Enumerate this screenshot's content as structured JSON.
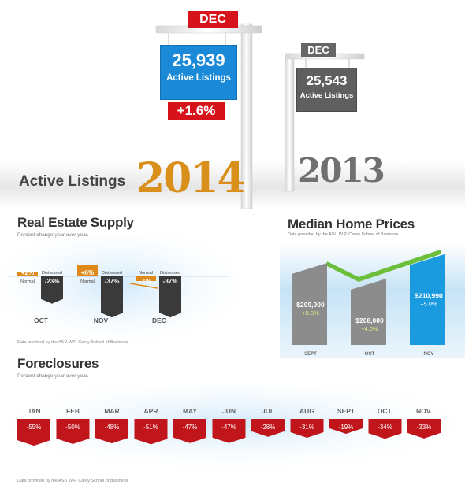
{
  "listings": {
    "section_title": "Active Listings",
    "current": {
      "month": "DEC",
      "count": "25,939",
      "label": "Active Listings",
      "change": "+1.6%",
      "year": "2014"
    },
    "previous": {
      "month": "DEC",
      "count": "25,543",
      "label": "Active Listings",
      "year": "2013"
    },
    "colors": {
      "current_blue": "#1a8ad8",
      "change_red": "#d6131b",
      "year_orange": "#d9901b",
      "year_gray": "#707070"
    }
  },
  "supply": {
    "title": "Real Estate Supply",
    "subtitle": "Percent change year over year.",
    "credit": "Data provided by the ASU W.P. Carey School of Business"
  },
  "prices": {
    "title": "Median Home Prices",
    "subtitle": "Data provided by the ASU W.P. Carey School of Business"
  },
  "foreclosures": {
    "title": "Foreclosures",
    "subtitle": "Percent change year over year.",
    "credit": "Data provided by the ASU W.P. Carey School of Business"
  },
  "chart_data": [
    {
      "type": "bar",
      "title": "Real Estate Supply",
      "subtitle": "Percent change year over year.",
      "categories": [
        "OCT",
        "NOV",
        "DEC"
      ],
      "series": [
        {
          "name": "Normal",
          "values": [
            2,
            6,
            -1
          ],
          "labels": [
            "+2%",
            "+6%",
            "-1%"
          ],
          "color": "#e0891b"
        },
        {
          "name": "Distressed",
          "values": [
            -23,
            -37,
            -37
          ],
          "labels": [
            "-23%",
            "-37%",
            "-37%"
          ],
          "color": "#3a3a3a"
        }
      ]
    },
    {
      "type": "bar",
      "title": "Median Home Prices",
      "categories": [
        "SEPT",
        "OCT",
        "NOV"
      ],
      "values": [
        209900,
        208000,
        210990
      ],
      "value_labels": [
        "209,900",
        "208,000",
        "210,990"
      ],
      "currency": "$",
      "changes": [
        "+5.0%",
        "+4.0%",
        "+5.0%"
      ],
      "colors": [
        "#8c8c8c",
        "#8c8c8c",
        "#1a9be0"
      ]
    },
    {
      "type": "bar",
      "title": "Foreclosures",
      "subtitle": "Percent change year over year.",
      "categories": [
        "JAN",
        "FEB",
        "MAR",
        "APR",
        "MAY",
        "JUN",
        "JUL",
        "AUG",
        "SEPT",
        "OCT.",
        "NOV."
      ],
      "values": [
        -55,
        -50,
        -48,
        -51,
        -47,
        -47,
        -28,
        -31,
        -19,
        -34,
        -33
      ],
      "labels": [
        "-55%",
        "-50%",
        "-48%",
        "-51%",
        "-47%",
        "-47%",
        "-28%",
        "-31%",
        "-19%",
        "-34%",
        "-33%"
      ],
      "color": "#c0151a"
    }
  ]
}
